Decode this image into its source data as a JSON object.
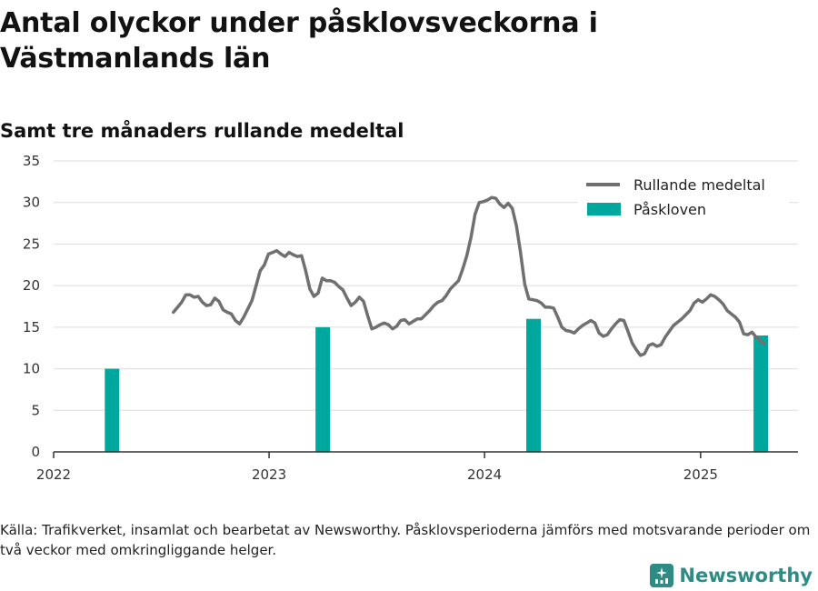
{
  "title": "Antal olyckor under påsklovsveckorna i Västmanlands län",
  "subtitle": "Samt tre månaders rullande medeltal",
  "source": "Källa: Trafikverket, insamlat och bearbetat av Newsworthy. Påsklovsperioderna jämförs med motsvarande perioder om två veckor med omkringliggande helger.",
  "brand": {
    "name": "Newsworthy",
    "icon": "newsworthy-logo-icon",
    "color": "#2e8c85"
  },
  "chart_data": {
    "type": "bar+line",
    "x_axis": {
      "type": "date",
      "range": [
        "2022-01-01",
        "2025-06-15"
      ],
      "tick_labels": [
        "2022",
        "2023",
        "2024",
        "2025"
      ]
    },
    "y_axis": {
      "range": [
        0,
        35
      ],
      "ticks": [
        0,
        5,
        10,
        15,
        20,
        25,
        30,
        35
      ]
    },
    "grid": true,
    "legend_position": "top-right",
    "colors": {
      "line": "#707070",
      "bar": "#00a79c",
      "grid": "#dddddd"
    },
    "series": [
      {
        "name": "Rullande medeltal",
        "type": "line",
        "points": [
          [
            "2022-07-23",
            16.8
          ],
          [
            "2022-07-30",
            17.4
          ],
          [
            "2022-08-06",
            18.0
          ],
          [
            "2022-08-13",
            18.9
          ],
          [
            "2022-08-20",
            18.9
          ],
          [
            "2022-08-27",
            18.6
          ],
          [
            "2022-09-03",
            18.7
          ],
          [
            "2022-09-10",
            18.0
          ],
          [
            "2022-09-17",
            17.6
          ],
          [
            "2022-09-24",
            17.7
          ],
          [
            "2022-10-01",
            18.5
          ],
          [
            "2022-10-08",
            18.1
          ],
          [
            "2022-10-15",
            17.1
          ],
          [
            "2022-10-22",
            16.8
          ],
          [
            "2022-10-29",
            16.6
          ],
          [
            "2022-11-05",
            15.8
          ],
          [
            "2022-11-12",
            15.4
          ],
          [
            "2022-11-19",
            16.2
          ],
          [
            "2022-11-26",
            17.2
          ],
          [
            "2022-12-03",
            18.2
          ],
          [
            "2022-12-10",
            20.0
          ],
          [
            "2022-12-17",
            21.8
          ],
          [
            "2022-12-24",
            22.5
          ],
          [
            "2022-12-31",
            23.8
          ],
          [
            "2023-01-07",
            24.0
          ],
          [
            "2023-01-14",
            24.2
          ],
          [
            "2023-01-21",
            23.8
          ],
          [
            "2023-01-28",
            23.5
          ],
          [
            "2023-02-04",
            24.0
          ],
          [
            "2023-02-11",
            23.7
          ],
          [
            "2023-02-18",
            23.5
          ],
          [
            "2023-02-25",
            23.6
          ],
          [
            "2023-03-04",
            21.8
          ],
          [
            "2023-03-11",
            19.6
          ],
          [
            "2023-03-18",
            18.7
          ],
          [
            "2023-03-25",
            19.1
          ],
          [
            "2023-04-01",
            20.9
          ],
          [
            "2023-04-08",
            20.6
          ],
          [
            "2023-04-15",
            20.6
          ],
          [
            "2023-04-22",
            20.4
          ],
          [
            "2023-04-29",
            19.9
          ],
          [
            "2023-05-06",
            19.5
          ],
          [
            "2023-05-13",
            18.5
          ],
          [
            "2023-05-20",
            17.6
          ],
          [
            "2023-05-27",
            18.0
          ],
          [
            "2023-06-03",
            18.6
          ],
          [
            "2023-06-10",
            18.1
          ],
          [
            "2023-06-17",
            16.4
          ],
          [
            "2023-06-24",
            14.8
          ],
          [
            "2023-07-01",
            15.0
          ],
          [
            "2023-07-08",
            15.3
          ],
          [
            "2023-07-15",
            15.5
          ],
          [
            "2023-07-22",
            15.3
          ],
          [
            "2023-07-29",
            14.8
          ],
          [
            "2023-08-05",
            15.1
          ],
          [
            "2023-08-12",
            15.8
          ],
          [
            "2023-08-19",
            15.9
          ],
          [
            "2023-08-26",
            15.4
          ],
          [
            "2023-09-02",
            15.7
          ],
          [
            "2023-09-09",
            16.0
          ],
          [
            "2023-09-16",
            16.0
          ],
          [
            "2023-09-23",
            16.5
          ],
          [
            "2023-09-30",
            17.0
          ],
          [
            "2023-10-07",
            17.6
          ],
          [
            "2023-10-14",
            18.0
          ],
          [
            "2023-10-21",
            18.2
          ],
          [
            "2023-10-28",
            18.8
          ],
          [
            "2023-11-04",
            19.6
          ],
          [
            "2023-11-11",
            20.1
          ],
          [
            "2023-11-18",
            20.6
          ],
          [
            "2023-11-25",
            22.0
          ],
          [
            "2023-12-02",
            23.6
          ],
          [
            "2023-12-09",
            25.8
          ],
          [
            "2023-12-16",
            28.6
          ],
          [
            "2023-12-23",
            30.0
          ],
          [
            "2023-12-30",
            30.1
          ],
          [
            "2024-01-06",
            30.3
          ],
          [
            "2024-01-13",
            30.6
          ],
          [
            "2024-01-20",
            30.5
          ],
          [
            "2024-01-27",
            29.8
          ],
          [
            "2024-02-03",
            29.4
          ],
          [
            "2024-02-10",
            29.9
          ],
          [
            "2024-02-17",
            29.3
          ],
          [
            "2024-02-24",
            27.2
          ],
          [
            "2024-03-02",
            24.0
          ],
          [
            "2024-03-09",
            20.2
          ],
          [
            "2024-03-16",
            18.4
          ],
          [
            "2024-03-23",
            18.3
          ],
          [
            "2024-03-30",
            18.2
          ],
          [
            "2024-04-06",
            17.9
          ],
          [
            "2024-04-13",
            17.4
          ],
          [
            "2024-04-20",
            17.4
          ],
          [
            "2024-04-27",
            17.3
          ],
          [
            "2024-05-04",
            16.2
          ],
          [
            "2024-05-11",
            15.0
          ],
          [
            "2024-05-18",
            14.6
          ],
          [
            "2024-05-25",
            14.5
          ],
          [
            "2024-06-01",
            14.3
          ],
          [
            "2024-06-08",
            14.8
          ],
          [
            "2024-06-15",
            15.2
          ],
          [
            "2024-06-22",
            15.5
          ],
          [
            "2024-06-29",
            15.8
          ],
          [
            "2024-07-06",
            15.5
          ],
          [
            "2024-07-13",
            14.3
          ],
          [
            "2024-07-20",
            13.9
          ],
          [
            "2024-07-27",
            14.1
          ],
          [
            "2024-08-03",
            14.8
          ],
          [
            "2024-08-10",
            15.4
          ],
          [
            "2024-08-17",
            15.9
          ],
          [
            "2024-08-24",
            15.8
          ],
          [
            "2024-08-31",
            14.5
          ],
          [
            "2024-09-07",
            13.1
          ],
          [
            "2024-09-14",
            12.3
          ],
          [
            "2024-09-21",
            11.6
          ],
          [
            "2024-09-28",
            11.8
          ],
          [
            "2024-10-05",
            12.8
          ],
          [
            "2024-10-12",
            13.0
          ],
          [
            "2024-10-19",
            12.7
          ],
          [
            "2024-10-26",
            12.9
          ],
          [
            "2024-11-02",
            13.8
          ],
          [
            "2024-11-09",
            14.5
          ],
          [
            "2024-11-16",
            15.2
          ],
          [
            "2024-11-23",
            15.6
          ],
          [
            "2024-11-30",
            16.0
          ],
          [
            "2024-12-07",
            16.5
          ],
          [
            "2024-12-14",
            17.0
          ],
          [
            "2024-12-21",
            17.9
          ],
          [
            "2024-12-28",
            18.3
          ],
          [
            "2025-01-04",
            18.0
          ],
          [
            "2025-01-11",
            18.4
          ],
          [
            "2025-01-18",
            18.9
          ],
          [
            "2025-01-25",
            18.7
          ],
          [
            "2025-02-01",
            18.3
          ],
          [
            "2025-02-08",
            17.8
          ],
          [
            "2025-02-15",
            17.0
          ],
          [
            "2025-02-22",
            16.6
          ],
          [
            "2025-03-01",
            16.2
          ],
          [
            "2025-03-08",
            15.6
          ],
          [
            "2025-03-15",
            14.2
          ],
          [
            "2025-03-22",
            14.1
          ],
          [
            "2025-03-29",
            14.4
          ],
          [
            "2025-04-05",
            13.8
          ],
          [
            "2025-04-12",
            13.4
          ],
          [
            "2025-04-19",
            13.0
          ]
        ]
      },
      {
        "name": "Påskloven",
        "type": "bar",
        "points": [
          [
            "2022-04-10",
            10
          ],
          [
            "2023-04-02",
            15
          ],
          [
            "2024-03-24",
            16
          ],
          [
            "2025-04-13",
            14
          ]
        ]
      }
    ]
  }
}
